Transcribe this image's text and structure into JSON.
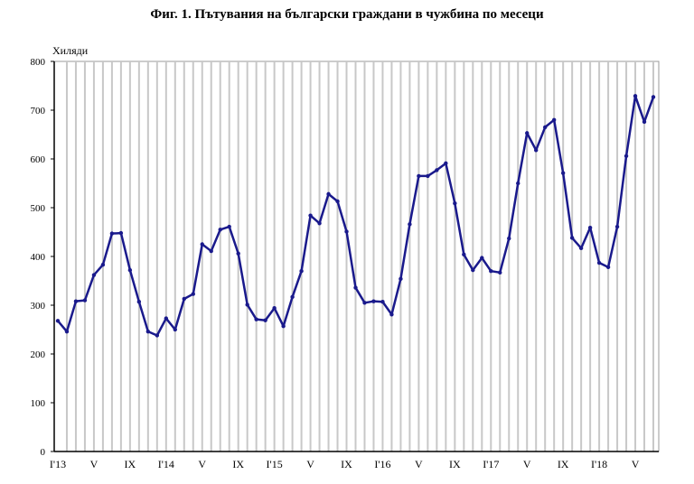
{
  "chart_data": {
    "type": "line",
    "title": "Фиг. 1. Пътувания на български граждани в чужбина по месеци",
    "ylabel": "Хиляди",
    "xlabel": "",
    "ylim": [
      0,
      800
    ],
    "yticks": [
      0,
      100,
      200,
      300,
      400,
      500,
      600,
      700,
      800
    ],
    "xtick_labels": [
      "I'13",
      "V",
      "IX",
      "I'14",
      "V",
      "IX",
      "I'15",
      "V",
      "IX",
      "I'16",
      "V",
      "IX",
      "I'17",
      "V",
      "IX",
      "I'18",
      "V"
    ],
    "grid": "vertical",
    "line_color": "#1a1a8c",
    "series": [
      {
        "values": [
          268,
          246,
          308,
          310,
          362,
          383,
          447,
          448,
          372,
          307,
          246,
          238,
          273,
          250,
          313,
          323,
          425,
          411,
          455,
          461,
          406,
          301,
          271,
          269,
          294,
          257,
          317,
          370,
          484,
          468,
          528,
          513,
          451,
          336,
          305,
          308,
          307,
          281,
          354,
          466,
          565,
          565,
          577,
          591,
          509,
          404,
          372,
          397,
          370,
          367,
          437,
          550,
          653,
          618,
          665,
          680,
          571,
          438,
          417,
          459,
          387,
          378,
          461,
          606,
          729,
          676,
          727
        ]
      }
    ]
  }
}
